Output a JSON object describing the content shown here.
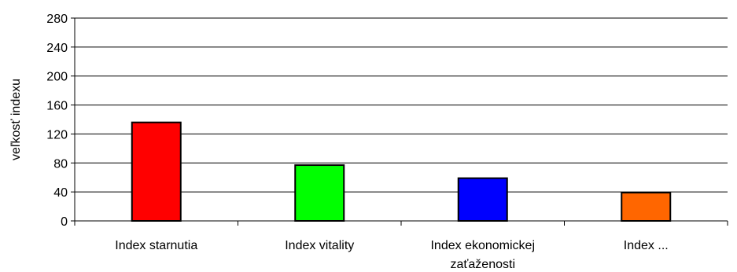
{
  "chart_data": {
    "type": "bar",
    "title": "",
    "xlabel": "",
    "ylabel": "veľkosť indexu",
    "ylim": [
      0,
      280
    ],
    "yticks": [
      0,
      40,
      80,
      120,
      160,
      200,
      240,
      280
    ],
    "grid": true,
    "legend": "none",
    "categories": [
      [
        "Index starnutia"
      ],
      [
        "Index vitality"
      ],
      [
        "Index ekonomickej",
        "zaťaženosti"
      ],
      [
        "Index ..."
      ]
    ],
    "values": [
      136,
      77,
      59,
      39
    ],
    "colors": [
      "#ff0000",
      "#00ff00",
      "#0000ff",
      "#ff6600"
    ]
  }
}
